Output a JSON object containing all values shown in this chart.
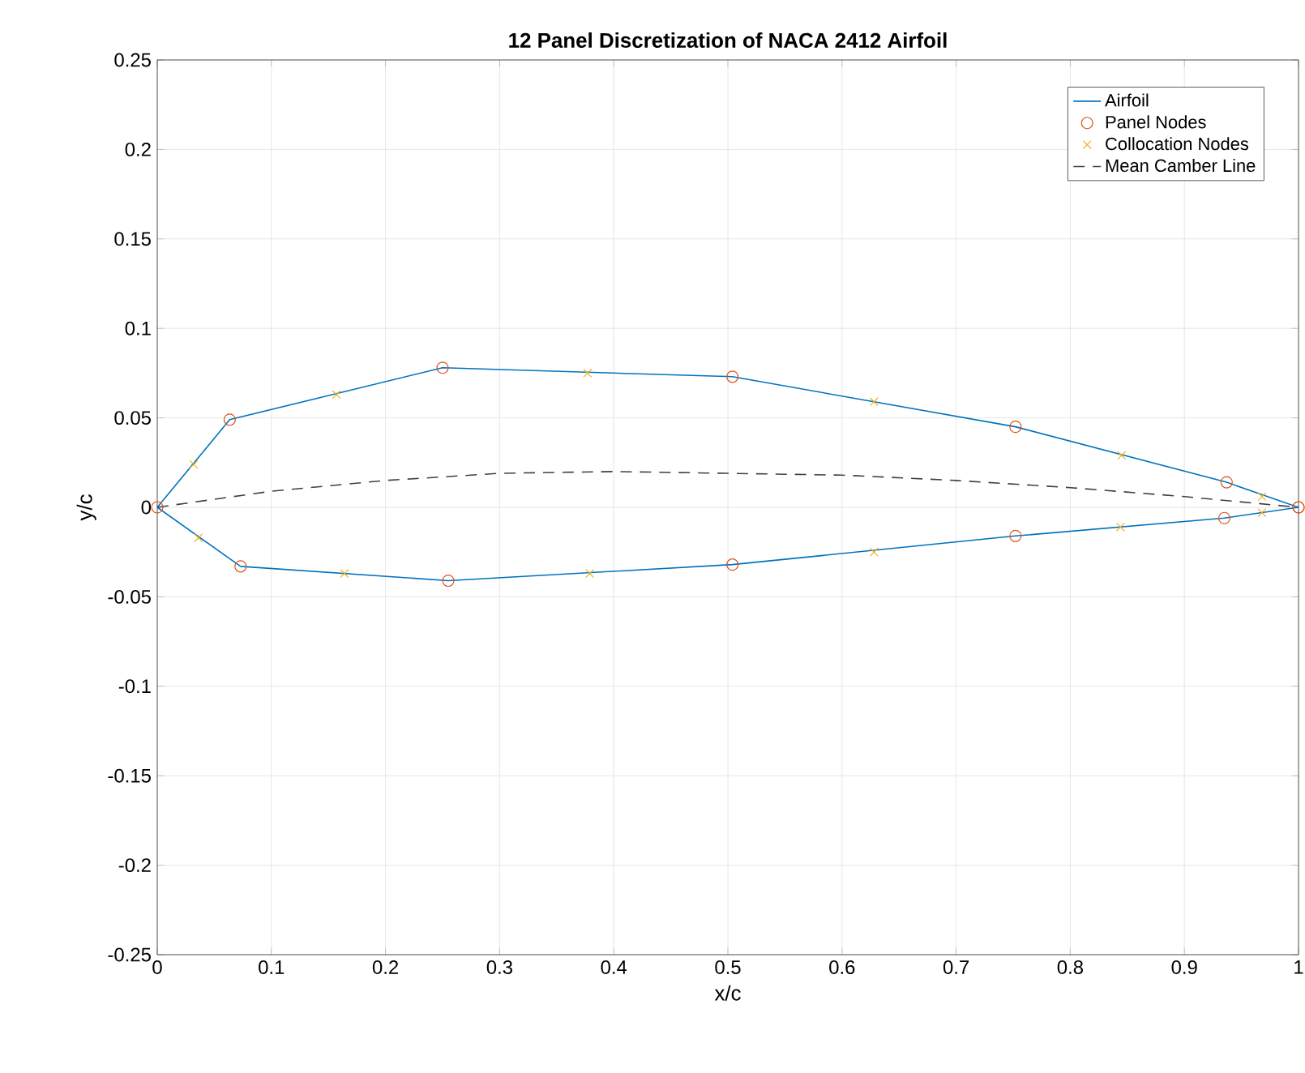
{
  "chart_data": {
    "type": "line",
    "title": "12 Panel Discretization of NACA 2412 Airfoil",
    "xlabel": "x/c",
    "ylabel": "y/c",
    "xlim": [
      0,
      1
    ],
    "ylim": [
      -0.25,
      0.25
    ],
    "xticks": [
      0,
      0.1,
      0.2,
      0.3,
      0.4,
      0.5,
      0.6,
      0.7,
      0.8,
      0.9,
      1
    ],
    "yticks": [
      -0.25,
      -0.2,
      -0.15,
      -0.1,
      -0.05,
      0,
      0.05,
      0.1,
      0.15,
      0.2,
      0.25
    ],
    "grid": true,
    "legend": "top right",
    "series": [
      {
        "name": "Airfoil",
        "color": "#0072bd",
        "marker": "none",
        "line_style": "solid",
        "x": [
          0,
          0.0635,
          0.25,
          0.504,
          0.752,
          0.937,
          1
        ],
        "values": [
          0,
          0.049,
          0.078,
          0.073,
          0.045,
          0.014,
          0
        ]
      },
      {
        "color": "#0072bd",
        "marker": "none",
        "line_style": "solid",
        "x": [
          0,
          0.073,
          0.255,
          0.504,
          0.752,
          0.935,
          1
        ],
        "values": [
          0,
          -0.033,
          -0.041,
          -0.032,
          -0.016,
          -0.006,
          0
        ]
      },
      {
        "name": "Panel Nodes",
        "type": "scatter",
        "color": "#d95319",
        "marker": "circle",
        "x": [
          1,
          0.937,
          0.752,
          0.504,
          0.25,
          0.0635,
          0,
          0.073,
          0.255,
          0.504,
          0.752,
          0.935,
          1
        ],
        "values": [
          0,
          0.014,
          0.045,
          0.073,
          0.078,
          0.049,
          0,
          -0.033,
          -0.041,
          -0.032,
          -0.016,
          -0.006,
          0
        ]
      },
      {
        "name": "Collocation Nodes",
        "type": "scatter",
        "color": "#edb120",
        "marker": "cross",
        "x": [
          0.968,
          0.845,
          0.628,
          0.377,
          0.157,
          0.032,
          0.036,
          0.164,
          0.379,
          0.628,
          0.844,
          0.968
        ],
        "values": [
          0.006,
          0.029,
          0.059,
          0.075,
          0.063,
          0.024,
          -0.017,
          -0.037,
          -0.037,
          -0.025,
          -0.011,
          -0.003
        ]
      },
      {
        "name": "Mean Camber Line",
        "color": "#404040",
        "marker": "none",
        "line_style": "dashed",
        "x": [
          0,
          0.1,
          0.2,
          0.3,
          0.4,
          0.5,
          0.6,
          0.7,
          0.8,
          0.9,
          1
        ],
        "values": [
          0,
          0.009,
          0.015,
          0.019,
          0.02,
          0.019,
          0.018,
          0.015,
          0.011,
          0.006,
          0
        ]
      }
    ]
  }
}
